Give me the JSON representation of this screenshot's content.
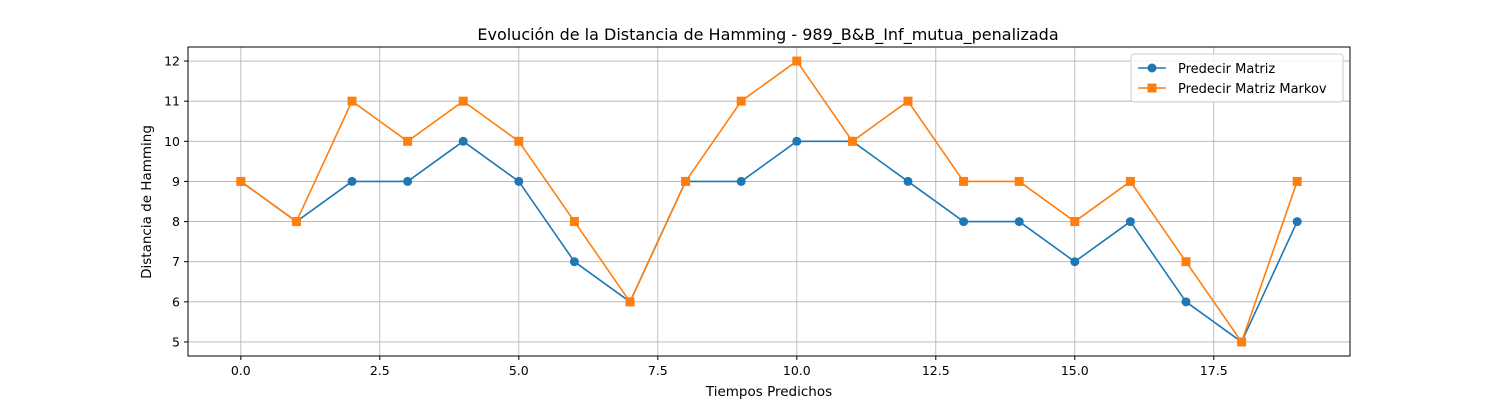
{
  "chart_data": {
    "type": "line",
    "title": "Evolución de la Distancia de Hamming - 989_B&B_Inf_mutua_penalizada",
    "xlabel": "Tiempos Predichos",
    "ylabel": "Distancia de Hamming",
    "x": [
      0,
      1,
      2,
      3,
      4,
      5,
      6,
      7,
      8,
      9,
      10,
      11,
      12,
      13,
      14,
      15,
      16,
      17,
      18,
      19
    ],
    "xlim": [
      -0.95,
      19.95
    ],
    "ylim": [
      4.65,
      12.35
    ],
    "xticks": [
      0.0,
      2.5,
      5.0,
      7.5,
      10.0,
      12.5,
      15.0,
      17.5
    ],
    "xtick_labels": [
      "0.0",
      "2.5",
      "5.0",
      "7.5",
      "10.0",
      "12.5",
      "15.0",
      "17.5"
    ],
    "yticks": [
      5,
      6,
      7,
      8,
      9,
      10,
      11,
      12
    ],
    "ytick_labels": [
      "5",
      "6",
      "7",
      "8",
      "9",
      "10",
      "11",
      "12"
    ],
    "grid": true,
    "legend": "top-right",
    "series": [
      {
        "name": "Predecir Matriz",
        "color": "#1f77b4",
        "marker": "circle",
        "values": [
          9,
          8,
          9,
          9,
          10,
          9,
          7,
          6,
          9,
          9,
          10,
          10,
          9,
          8,
          8,
          7,
          8,
          6,
          5,
          8
        ]
      },
      {
        "name": "Predecir Matriz Markov",
        "color": "#ff7f0e",
        "marker": "square",
        "values": [
          9,
          8,
          11,
          10,
          11,
          10,
          8,
          6,
          9,
          11,
          12,
          10,
          11,
          9,
          9,
          8,
          9,
          7,
          5,
          9
        ]
      }
    ]
  }
}
